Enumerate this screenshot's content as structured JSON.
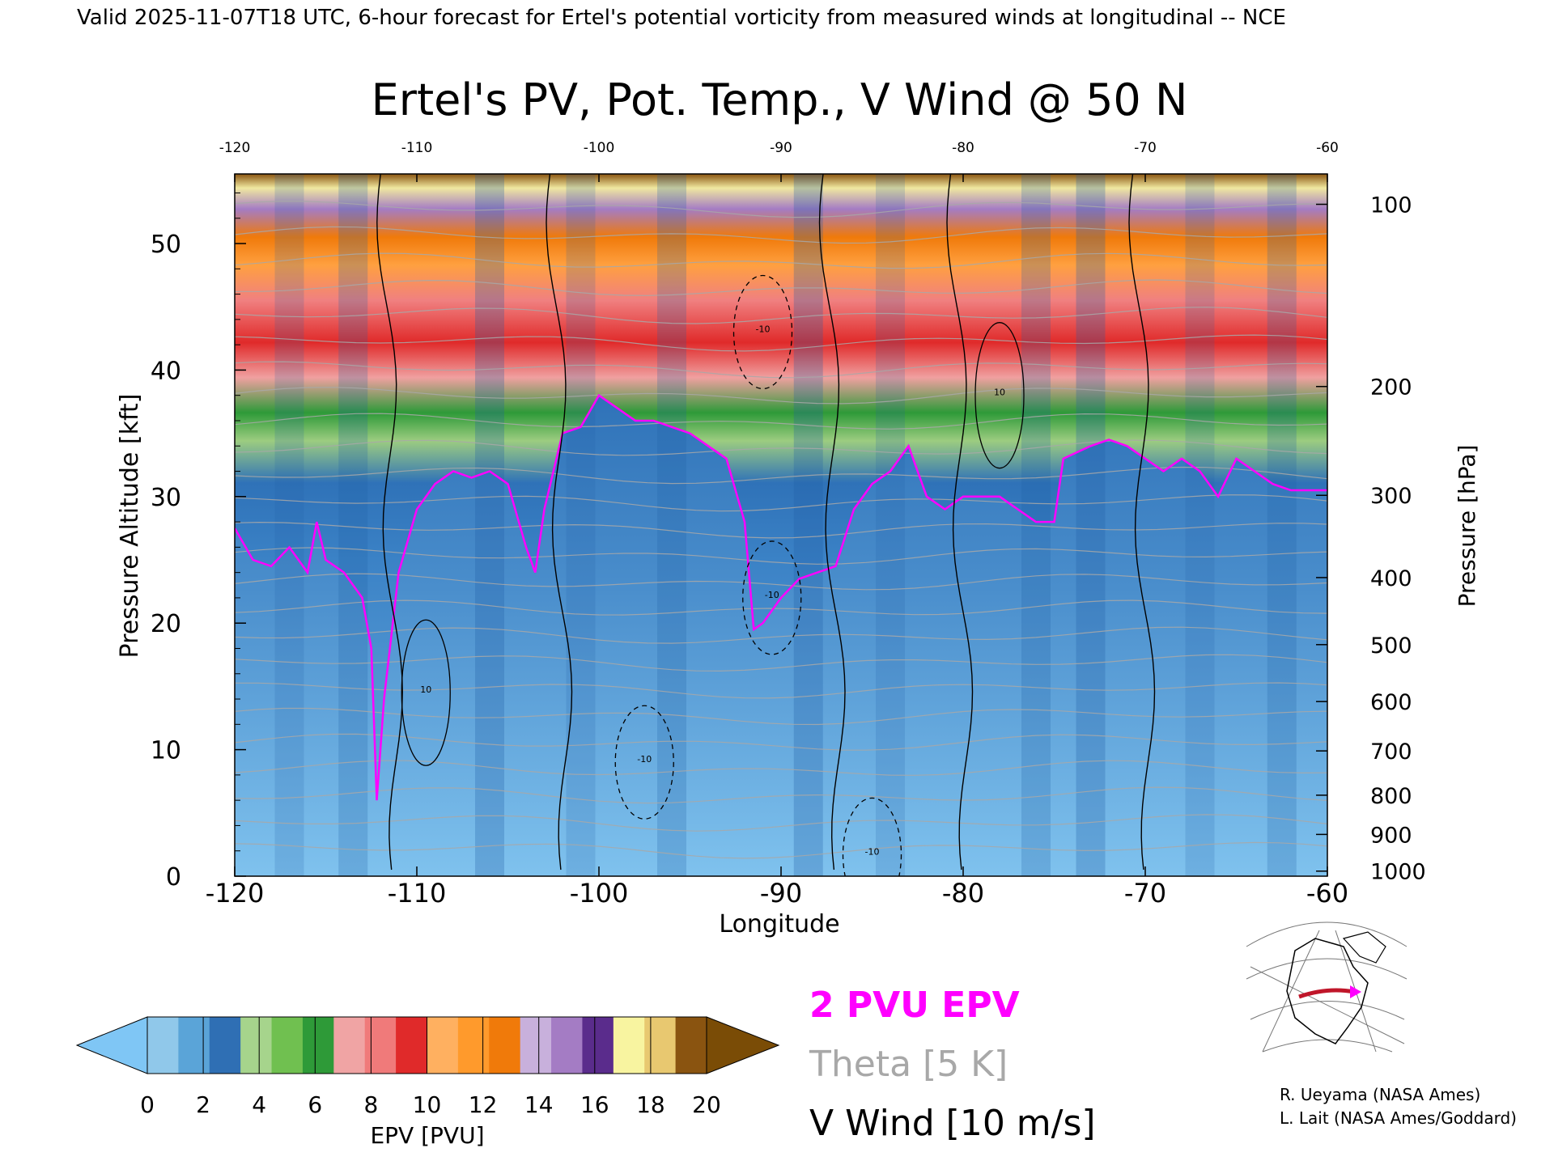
{
  "header": "Valid 2025-11-07T18 UTC, 6-hour forecast for Ertel's potential vorticity from measured winds at longitudinal -- NCE",
  "chart_data": {
    "type": "heatmap",
    "title": "Ertel's PV, Pot. Temp., V Wind @ 50 N",
    "xlabel": "Longitude",
    "ylabel_left": "Pressure Altitude [kft]",
    "ylabel_right": "Pressure [hPa]",
    "xlim": [
      -120,
      -60
    ],
    "ylim_kft": [
      0,
      55.5
    ],
    "x_ticks_bottom": [
      "-120",
      "-110",
      "-100",
      "-90",
      "-80",
      "-70",
      "-60"
    ],
    "x_ticks_top": [
      "-120",
      "-110",
      "-100",
      "-90",
      "-80",
      "-70",
      "-60"
    ],
    "y_ticks_left": [
      "0",
      "10",
      "20",
      "30",
      "40",
      "50"
    ],
    "y_ticks_right": [
      {
        "label": "100",
        "kft": 53.1
      },
      {
        "label": "200",
        "kft": 38.7
      },
      {
        "label": "300",
        "kft": 30.1
      },
      {
        "label": "400",
        "kft": 23.6
      },
      {
        "label": "500",
        "kft": 18.3
      },
      {
        "label": "600",
        "kft": 13.8
      },
      {
        "label": "700",
        "kft": 9.9
      },
      {
        "label": "800",
        "kft": 6.4
      },
      {
        "label": "900",
        "kft": 3.3
      },
      {
        "label": "1000",
        "kft": 0.4
      }
    ],
    "tropopause_kft": [
      [
        -120,
        27.5
      ],
      [
        -119,
        25
      ],
      [
        -118,
        24.5
      ],
      [
        -117,
        26
      ],
      [
        -116,
        24
      ],
      [
        -115.5,
        28
      ],
      [
        -115,
        25
      ],
      [
        -114,
        24
      ],
      [
        -113,
        22
      ],
      [
        -112.5,
        18
      ],
      [
        -112.2,
        6
      ],
      [
        -111.8,
        14
      ],
      [
        -111,
        24
      ],
      [
        -110,
        29
      ],
      [
        -109,
        31
      ],
      [
        -108,
        32
      ],
      [
        -107,
        31.5
      ],
      [
        -106,
        32
      ],
      [
        -105,
        31
      ],
      [
        -104,
        26
      ],
      [
        -103.5,
        24
      ],
      [
        -103,
        29
      ],
      [
        -102,
        35
      ],
      [
        -101,
        35.5
      ],
      [
        -100,
        38
      ],
      [
        -99,
        37
      ],
      [
        -98,
        36
      ],
      [
        -97,
        36
      ],
      [
        -96,
        35.5
      ],
      [
        -95,
        35
      ],
      [
        -94,
        34
      ],
      [
        -93,
        33
      ],
      [
        -92,
        28
      ],
      [
        -91.5,
        19.5
      ],
      [
        -91,
        20
      ],
      [
        -90,
        22
      ],
      [
        -89,
        23.5
      ],
      [
        -88,
        24
      ],
      [
        -87,
        24.5
      ],
      [
        -86,
        29
      ],
      [
        -85,
        31
      ],
      [
        -84,
        32
      ],
      [
        -83,
        34
      ],
      [
        -82,
        30
      ],
      [
        -81,
        29
      ],
      [
        -80,
        30
      ],
      [
        -79,
        30
      ],
      [
        -78,
        30
      ],
      [
        -77,
        29
      ],
      [
        -76,
        28
      ],
      [
        -75,
        28
      ],
      [
        -74.5,
        33
      ],
      [
        -73,
        34
      ],
      [
        -72,
        34.5
      ],
      [
        -71,
        34
      ],
      [
        -70,
        33
      ],
      [
        -69,
        32
      ],
      [
        -68,
        33
      ],
      [
        -67,
        32
      ],
      [
        -66,
        30
      ],
      [
        -65,
        33
      ],
      [
        -64,
        32
      ],
      [
        -63,
        31
      ],
      [
        -62,
        30.5
      ],
      [
        -61,
        30.5
      ],
      [
        -60,
        30.5
      ]
    ],
    "v_wind_zero_longitudes": [
      -111.8,
      -102.5,
      -87.5,
      -80.5,
      -70.5
    ],
    "v_wind_contour_labels": [
      {
        "text": "10",
        "lon": -109.5,
        "kft": 14.5
      },
      {
        "text": "10",
        "lon": -78,
        "kft": 38
      },
      {
        "text": "-10",
        "lon": -90.5,
        "kft": 22
      },
      {
        "text": "-10",
        "lon": -91,
        "kft": 43
      },
      {
        "text": "-10",
        "lon": -85,
        "kft": 1.7
      },
      {
        "text": "-10",
        "lon": -97.5,
        "kft": 9
      }
    ]
  },
  "colorbar": {
    "label": "EPV [PVU]",
    "tick_labels": [
      "0",
      "2",
      "4",
      "6",
      "8",
      "10",
      "12",
      "14",
      "16",
      "18",
      "20"
    ],
    "range": [
      0,
      20
    ],
    "under_color": "#7fc6f5",
    "over_color": "#7a4c06",
    "colors": [
      "#90c8ea",
      "#5aa4d8",
      "#2f6fb4",
      "#a6d48c",
      "#70c050",
      "#2e9a38",
      "#f0a4a4",
      "#f07a7a",
      "#e02a2a",
      "#ffb060",
      "#ff9a2c",
      "#f07a0a",
      "#c8b0dc",
      "#a47cc4",
      "#5a2c8c",
      "#f8f4a0",
      "#e8c870",
      "#8a5410"
    ]
  },
  "legend": {
    "epv": "2 PVU EPV",
    "theta": "Theta [5 K]",
    "vwind": "V Wind [10 m/s]",
    "epv_color": "#ff00ff",
    "theta_color": "#a8a8a8"
  },
  "credits": [
    "R. Ueyama (NASA Ames)",
    "L. Lait (NASA Ames/Goddard)"
  ]
}
